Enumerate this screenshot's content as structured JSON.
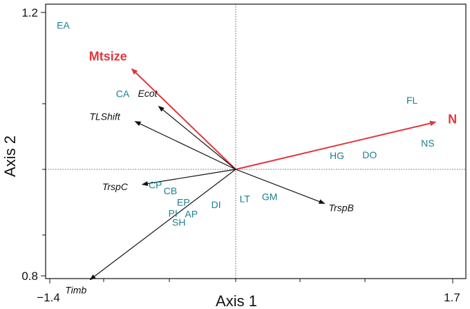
{
  "chart_data": {
    "type": "biplot",
    "xlabel": "Axis 1",
    "ylabel": "Axis 2",
    "xlim": [
      -1.4,
      1.7
    ],
    "ylim": [
      0.8,
      1.2
    ],
    "x_ticks_labeled": [
      {
        "value": -1.4,
        "label": "−1.4"
      },
      {
        "value": 1.7,
        "label": "1.7"
      }
    ],
    "y_ticks_labeled": [
      {
        "value": 1.2,
        "label": "1.2"
      },
      {
        "value": 0.8,
        "label": "0.8"
      }
    ],
    "reference_lines": {
      "x": 0.0,
      "y": 1.0,
      "style": "dotted"
    },
    "colors": {
      "sites": "#1b7f8e",
      "arrows_red": "#e0373c",
      "arrows_black": "#111111"
    },
    "arrows": [
      {
        "label": "Mtsize",
        "color": "red",
        "x": -1.59,
        "y": 1.153
      },
      {
        "label": "N",
        "color": "red",
        "x": 3.06,
        "y": 1.072
      },
      {
        "label": "Ecot",
        "color": "black",
        "x": -1.18,
        "y": 1.096
      },
      {
        "label": "TLShift",
        "color": "black",
        "x": -1.54,
        "y": 1.073
      },
      {
        "label": "TrspC",
        "color": "black",
        "x": -1.43,
        "y": 0.977
      },
      {
        "label": "TrspB",
        "color": "black",
        "x": 1.36,
        "y": 0.948
      },
      {
        "label": "Timb",
        "color": "black",
        "x": -2.23,
        "y": 0.832
      }
    ],
    "sites": [
      {
        "label": "EA",
        "x": -2.64,
        "y": 1.214
      },
      {
        "label": "CA",
        "x": -1.73,
        "y": 1.11
      },
      {
        "label": "FL",
        "x": 2.7,
        "y": 1.1
      },
      {
        "label": "NS",
        "x": 2.94,
        "y": 1.035
      },
      {
        "label": "HG",
        "x": 1.55,
        "y": 1.016
      },
      {
        "label": "DO",
        "x": 2.05,
        "y": 1.017
      },
      {
        "label": "CP",
        "x": -1.23,
        "y": 0.971
      },
      {
        "label": "CB",
        "x": -1.0,
        "y": 0.962
      },
      {
        "label": "EP",
        "x": -0.8,
        "y": 0.945
      },
      {
        "label": "PI",
        "x": -0.96,
        "y": 0.928
      },
      {
        "label": "AP",
        "x": -0.68,
        "y": 0.927
      },
      {
        "label": "SH",
        "x": -0.87,
        "y": 0.914
      },
      {
        "label": "DI",
        "x": -0.3,
        "y": 0.941
      },
      {
        "label": "LT",
        "x": 0.14,
        "y": 0.95
      },
      {
        "label": "GM",
        "x": 0.52,
        "y": 0.953
      }
    ]
  }
}
